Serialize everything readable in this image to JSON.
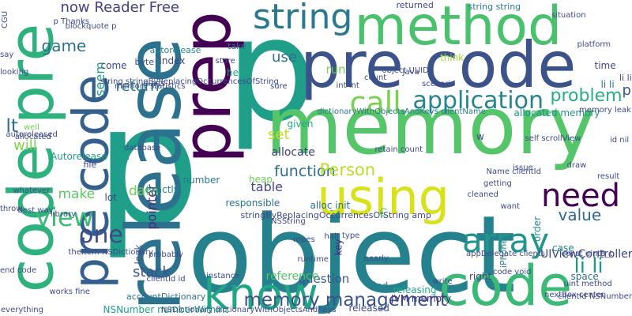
{
  "cloud": {
    "words": [
      {
        "text": "p",
        "color": "#1f9e89"
      },
      {
        "text": "p",
        "color": "#1f9e89"
      },
      {
        "text": "object",
        "color": "#26818e"
      },
      {
        "text": "memory",
        "color": "#54c568"
      },
      {
        "text": "pre code",
        "color": "#3b528b"
      },
      {
        "text": "method",
        "color": "#4ac16d"
      },
      {
        "text": "code pre",
        "color": "#2db27d"
      },
      {
        "text": "release",
        "color": "#2c718e"
      },
      {
        "text": "prep",
        "color": "#440154"
      },
      {
        "text": "code",
        "color": "#3aba76"
      },
      {
        "text": "know",
        "color": "#21a685"
      },
      {
        "text": "pre code",
        "color": "#34608d"
      },
      {
        "text": "using",
        "color": "#d8e219"
      },
      {
        "text": "string",
        "color": "#2a788e"
      },
      {
        "text": "array",
        "color": "#1f968b"
      },
      {
        "text": "need",
        "color": "#440154"
      },
      {
        "text": "call",
        "color": "#7ad151"
      },
      {
        "text": "application",
        "color": "#25848e"
      },
      {
        "text": "view",
        "color": "#3bbb75"
      },
      {
        "text": "one",
        "color": "#3e4a89"
      },
      {
        "text": "memory management",
        "color": "#3b528b"
      },
      {
        "text": "problem",
        "color": "#27ad81"
      },
      {
        "text": "li li",
        "color": "#1f988b"
      },
      {
        "text": "function",
        "color": "#2e6e8e"
      },
      {
        "text": "Person",
        "color": "#b5de2b"
      },
      {
        "text": "value",
        "color": "#31688e"
      },
      {
        "text": "now Reader Free",
        "color": "#433e85"
      },
      {
        "text": "game",
        "color": "#2e6f8e"
      },
      {
        "text": "return",
        "color": "#287c8e"
      },
      {
        "text": "use",
        "color": "#2d718e"
      },
      {
        "text": "lt",
        "color": "#2f6b8e"
      },
      {
        "text": "will",
        "color": "#7fd34e"
      },
      {
        "text": "data",
        "color": "#6ece58"
      },
      {
        "text": "make",
        "color": "#5ec962"
      },
      {
        "text": "stack",
        "color": "#3b528b"
      },
      {
        "text": "question",
        "color": "#39568c"
      },
      {
        "text": "reference",
        "color": "#52c569"
      },
      {
        "text": "pointer",
        "color": "#482878"
      },
      {
        "text": "set",
        "color": "#c0df25"
      },
      {
        "text": "allocate",
        "color": "#433e85"
      },
      {
        "text": "table",
        "color": "#404688"
      },
      {
        "text": "UIViewController",
        "color": "#3e4989"
      },
      {
        "text": "space",
        "color": "#2d708e"
      },
      {
        "text": "run",
        "color": "#7ad151"
      },
      {
        "text": "seem",
        "color": "#1f9e89"
      },
      {
        "text": "p",
        "color": "#3b528b"
      },
      {
        "text": "help",
        "color": "#20a386"
      },
      {
        "text": "Autorelease Pool",
        "color": "#1f9e89"
      },
      {
        "text": "accountDictionary",
        "color": "#2c728e"
      },
      {
        "text": "NSNumber numberWithInt",
        "color": "#1fa088"
      },
      {
        "text": "JVM memory",
        "color": "#453581"
      },
      {
        "text": "released",
        "color": "#3e4a89"
      },
      {
        "text": "releasing",
        "color": "#22a884"
      },
      {
        "text": "find",
        "color": "#27808e"
      },
      {
        "text": "right",
        "color": "#404688"
      },
      {
        "text": "case",
        "color": "#27808e"
      },
      {
        "text": "alloc init",
        "color": "#2e6e8e"
      },
      {
        "text": "stringByReplacingOccurrencesOfString amp",
        "color": "#3e4a89"
      },
      {
        "text": "responsible",
        "color": "#2c728e"
      },
      {
        "text": "exactly",
        "color": "#25848e"
      },
      {
        "text": "lot",
        "color": "#3f4788"
      },
      {
        "text": "heap",
        "color": "#6ece58"
      },
      {
        "text": "allocated memory",
        "color": "#20928c"
      },
      {
        "text": "given",
        "color": "#22a884"
      },
      {
        "text": "think",
        "color": "#a2da37"
      },
      {
        "text": "take",
        "color": "#2c728e"
      },
      {
        "text": "class",
        "color": "#3b528b"
      },
      {
        "text": "index",
        "color": "#3f4788"
      },
      {
        "text": "autorelease",
        "color": "#24868e"
      },
      {
        "text": "byte",
        "color": "#3b528b"
      },
      {
        "text": "time",
        "color": "#3e4a89"
      },
      {
        "text": "string string",
        "color": "#2a778e"
      },
      {
        "text": "returned",
        "color": "#3f4788"
      },
      {
        "text": "number",
        "color": "#2a778e"
      },
      {
        "text": "key",
        "color": "#482173"
      },
      {
        "text": "iPhone",
        "color": "#26818e"
      },
      {
        "text": "leak",
        "color": "#3b528b"
      },
      {
        "text": "file",
        "color": "#3e4a89"
      },
      {
        "text": "C",
        "color": "#5ec962"
      },
      {
        "text": "come",
        "color": "#3e4a89"
      },
      {
        "text": "order",
        "color": "#23898e"
      },
      {
        "text": "li li",
        "color": "#2c728e"
      },
      {
        "text": "li li",
        "color": "#3f4788"
      },
      {
        "text": "w",
        "color": "#3f4788"
      },
      {
        "text": "string stringByReplacingOccurrencesOfString",
        "color": "#3e4a89"
      },
      {
        "text": "memory statistics",
        "color": "#3e4a89"
      },
      {
        "text": "dictionaryWithObjectsAndKeys clientName",
        "color": "#2a778e"
      },
      {
        "text": "NSDictionary dictionaryWithObjectsAndKeys",
        "color": "#3e4a89"
      },
      {
        "text": "clientId NSNumber",
        "color": "#3e4a89"
      },
      {
        "text": "code void",
        "color": "#3e4a89"
      },
      {
        "text": "appDelegate clients",
        "color": "#3e4a89"
      },
      {
        "text": "NSString",
        "color": "#3e4a89"
      },
      {
        "text": "ropes",
        "color": "#3e4a89"
      },
      {
        "text": "runtime",
        "color": "#3e4a89"
      },
      {
        "text": "probably",
        "color": "#3e4a89"
      },
      {
        "text": "halt",
        "color": "#3e4a89"
      },
      {
        "text": "type",
        "color": "#3e4a89"
      },
      {
        "text": "nearly",
        "color": "#3e4a89"
      },
      {
        "text": "cleaned",
        "color": "#3e4a89"
      },
      {
        "text": "Name clientId",
        "color": "#3e4a89"
      },
      {
        "text": "self scrollView",
        "color": "#3e4a89"
      },
      {
        "text": "retain count",
        "color": "#3e4a89"
      },
      {
        "text": "issue",
        "color": "#3e4a89"
      },
      {
        "text": "platform",
        "color": "#3e4a89"
      },
      {
        "text": "Java",
        "color": "#3e4a89"
      },
      {
        "text": "int int",
        "color": "#3e4a89"
      },
      {
        "text": "count",
        "color": "#3e4a89"
      },
      {
        "text": "object UUID",
        "color": "#3e4a89"
      },
      {
        "text": "sure",
        "color": "#3e4a89"
      },
      {
        "text": "store",
        "color": "#3e4a89"
      },
      {
        "text": "p Thanks",
        "color": "#3e4a89"
      },
      {
        "text": "blockquote p",
        "color": "#3e4a89"
      },
      {
        "text": "say",
        "color": "#3e4a89"
      },
      {
        "text": "looking",
        "color": "#3e4a89"
      },
      {
        "text": "well",
        "color": "#6ece58"
      },
      {
        "text": "autoreleased",
        "color": "#3e4a89"
      },
      {
        "text": "allocated",
        "color": "#3e4a89"
      },
      {
        "text": "database",
        "color": "#3e4a89"
      },
      {
        "text": "whatever",
        "color": "#3e4a89"
      },
      {
        "text": "best way",
        "color": "#3e4a89"
      },
      {
        "text": "library",
        "color": "#3e4a89"
      },
      {
        "text": "throw",
        "color": "#3e4a89"
      },
      {
        "text": "theItem NSDictionary",
        "color": "#3e4a89"
      },
      {
        "text": "end code",
        "color": "#3e4a89"
      },
      {
        "text": "everything",
        "color": "#3e4a89"
      },
      {
        "text": "works fine",
        "color": "#3e4a89"
      },
      {
        "text": "clientId id",
        "color": "#3e4a89"
      },
      {
        "text": "instance",
        "color": "#3e4a89"
      },
      {
        "text": "write",
        "color": "#3e4a89"
      },
      {
        "text": "want",
        "color": "#3e4a89"
      },
      {
        "text": "getting",
        "color": "#3e4a89"
      },
      {
        "text": "result",
        "color": "#3e4a89"
      },
      {
        "text": "draw",
        "color": "#3e4a89"
      },
      {
        "text": "id nil",
        "color": "#3e4a89"
      },
      {
        "text": "situation",
        "color": "#3e4a89"
      },
      {
        "text": "const uint8_t",
        "color": "#3e4a89"
      },
      {
        "text": "nextBox center",
        "color": "#3e4a89"
      },
      {
        "text": "uint method",
        "color": "#3e4a89"
      },
      {
        "text": "memory leak",
        "color": "#3e4a89"
      },
      {
        "text": "scenario",
        "color": "#3e4a89"
      },
      {
        "text": "CGU",
        "color": "#3e4a89"
      }
    ]
  }
}
